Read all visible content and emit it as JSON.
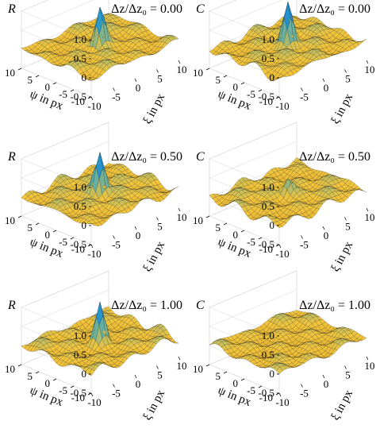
{
  "chart_data": [
    {
      "type": "surface",
      "panel_label": "R",
      "annotation": "Δz/Δz₀ = 0.00",
      "zticks": [
        "1.0",
        "0.5",
        "0",
        "-0.5"
      ],
      "xlabel": "ξ in px",
      "ylabel": "ψ in px",
      "xticks": [
        "-10",
        "-5",
        "0",
        "5",
        "10"
      ],
      "yticks": [
        "10",
        "5",
        "0",
        "-5",
        "-10"
      ],
      "x_range": [
        -10,
        10
      ],
      "y_range": [
        -10,
        10
      ],
      "z_range": [
        -0.5,
        1.0
      ],
      "peak_value": 1.0,
      "background_ripple_amplitude": 0.12,
      "colormap": "parula"
    },
    {
      "type": "surface",
      "panel_label": "C",
      "annotation": "Δz/Δz₀ = 0.00",
      "zticks": [
        "1.0",
        "0.5",
        "0",
        "-0.5"
      ],
      "xlabel": "ξ in px",
      "ylabel": "ψ in px",
      "xticks": [
        "-10",
        "-5",
        "0",
        "5",
        "10"
      ],
      "yticks": [
        "10",
        "5",
        "0",
        "-5",
        "-10"
      ],
      "x_range": [
        -10,
        10
      ],
      "y_range": [
        -10,
        10
      ],
      "z_range": [
        -0.5,
        1.0
      ],
      "peak_value": 1.0,
      "background_ripple_amplitude": 0.12,
      "colormap": "parula"
    },
    {
      "type": "surface",
      "panel_label": "R",
      "annotation": "Δz/Δz₀ = 0.50",
      "zticks": [
        "1.0",
        "0.5",
        "0",
        "-0.5"
      ],
      "xlabel": "ξ in px",
      "ylabel": "ψ in px",
      "xticks": [
        "-10",
        "-5",
        "0",
        "5",
        "10"
      ],
      "yticks": [
        "10",
        "5",
        "0",
        "-5",
        "-10"
      ],
      "x_range": [
        -10,
        10
      ],
      "y_range": [
        -10,
        10
      ],
      "z_range": [
        -0.5,
        1.0
      ],
      "peak_value": 1.0,
      "background_ripple_amplitude": 0.12,
      "colormap": "parula"
    },
    {
      "type": "surface",
      "panel_label": "C",
      "annotation": "Δz/Δz₀ = 0.50",
      "zticks": [
        "1.0",
        "0.5",
        "0",
        "-0.5"
      ],
      "xlabel": "ξ in px",
      "ylabel": "ψ in px",
      "xticks": [
        "-10",
        "-5",
        "0",
        "5",
        "10"
      ],
      "yticks": [
        "10",
        "5",
        "0",
        "-5",
        "-10"
      ],
      "x_range": [
        -10,
        10
      ],
      "y_range": [
        -10,
        10
      ],
      "z_range": [
        -0.5,
        1.0
      ],
      "peak_value": 0.35,
      "background_ripple_amplitude": 0.12,
      "colormap": "parula"
    },
    {
      "type": "surface",
      "panel_label": "R",
      "annotation": "Δz/Δz₀ = 1.00",
      "zticks": [
        "1.0",
        "0.5",
        "0",
        "-0.5"
      ],
      "xlabel": "ξ in px",
      "ylabel": "ψ in px",
      "xticks": [
        "-10",
        "-5",
        "0",
        "5",
        "10"
      ],
      "yticks": [
        "10",
        "5",
        "0",
        "-5",
        "-10"
      ],
      "x_range": [
        -10,
        10
      ],
      "y_range": [
        -10,
        10
      ],
      "z_range": [
        -0.5,
        1.0
      ],
      "peak_value": 1.0,
      "background_ripple_amplitude": 0.12,
      "colormap": "parula"
    },
    {
      "type": "surface",
      "panel_label": "C",
      "annotation": "Δz/Δz₀ = 1.00",
      "zticks": [
        "1.0",
        "0.5",
        "0",
        "-0.5"
      ],
      "xlabel": "ξ in px",
      "ylabel": "ψ in px",
      "xticks": [
        "-10",
        "-5",
        "0",
        "5",
        "10"
      ],
      "yticks": [
        "10",
        "5",
        "0",
        "-5",
        "-10"
      ],
      "x_range": [
        -10,
        10
      ],
      "y_range": [
        -10,
        10
      ],
      "z_range": [
        -0.5,
        1.0
      ],
      "peak_value": 0.0,
      "background_ripple_amplitude": 0.12,
      "colormap": "parula"
    }
  ],
  "colors": {
    "low": "#d99a1e",
    "mid": "#f2c53a",
    "high": "#2ea6c9",
    "peak": "#1f7ad6",
    "edge": "#1a1a1a",
    "axis": "#000000",
    "grid": "#dcdcdc"
  }
}
